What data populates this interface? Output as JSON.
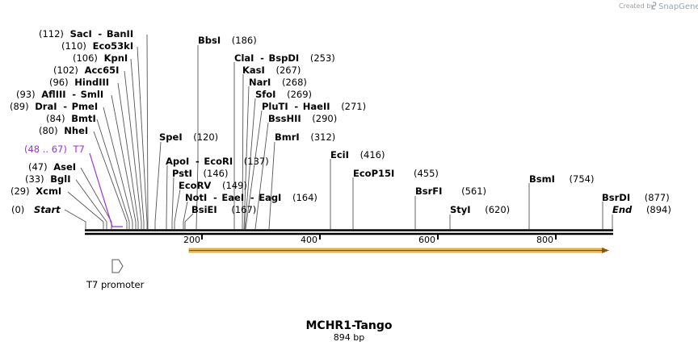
{
  "credit": {
    "created_by": "Created by",
    "brand": "SnapGene"
  },
  "map": {
    "title": "MCHR1-Tango",
    "length_label": "894 bp",
    "axis_ticks": [
      "200",
      "400",
      "600",
      "800"
    ],
    "colors": {
      "backbone": "#000000",
      "feature_orange": "#f4b942",
      "feature_purple": "#9b30d9",
      "label_line": "#555555"
    }
  },
  "features": {
    "t7_promoter": {
      "label": "T7 promoter",
      "icon": "arrow-outline-icon"
    },
    "t7_site": {
      "range": "(48 .. 67)",
      "name": "T7"
    }
  },
  "sites": {
    "start": {
      "pos": "(0)",
      "name": "Start"
    },
    "xcmi": {
      "pos": "(29)",
      "name": "XcmI"
    },
    "bgli": {
      "pos": "(33)",
      "name": "BglI"
    },
    "asei": {
      "pos": "(47)",
      "name": "AseI"
    },
    "nhei": {
      "pos": "(80)",
      "name": "NheI"
    },
    "bmti": {
      "pos": "(84)",
      "name": "BmtI"
    },
    "drai": {
      "pos": "(89)",
      "name": "DraI",
      "partner": "PmeI"
    },
    "aflii": {
      "pos": "(93)",
      "name": "AflIII",
      "partner": "SmlI"
    },
    "hindiii": {
      "pos": "(96)",
      "name": "HindIII"
    },
    "acc65i": {
      "pos": "(102)",
      "name": "Acc65I"
    },
    "kpni": {
      "pos": "(106)",
      "name": "KpnI"
    },
    "eco53ki": {
      "pos": "(110)",
      "name": "Eco53kI"
    },
    "saci": {
      "pos": "(112)",
      "name": "SacI",
      "partner": "BanII"
    },
    "spei": {
      "name": "SpeI",
      "pos": "(120)"
    },
    "apoi": {
      "name": "ApoI",
      "partner": "EcoRI",
      "pos": "(137)"
    },
    "psti": {
      "name": "PstI",
      "pos": "(146)"
    },
    "ecorv": {
      "name": "EcoRV",
      "pos": "(149)"
    },
    "noti": {
      "name": "NotI",
      "partner": "EaeI",
      "partner2": "EagI",
      "pos": "(164)"
    },
    "bsiei": {
      "name": "BsiEI",
      "pos": "(167)"
    },
    "bbsi": {
      "name": "BbsI",
      "pos": "(186)"
    },
    "clai": {
      "name": "ClaI",
      "partner": "BspDI",
      "pos": "(253)"
    },
    "kasi": {
      "name": "KasI",
      "pos": "(267)"
    },
    "nari": {
      "name": "NarI",
      "pos": "(268)"
    },
    "sfoi": {
      "name": "SfoI",
      "pos": "(269)"
    },
    "pluti": {
      "name": "PluTI",
      "partner": "HaeII",
      "pos": "(271)"
    },
    "bsshii": {
      "name": "BssHII",
      "pos": "(290)"
    },
    "bmri": {
      "name": "BmrI",
      "pos": "(312)"
    },
    "ecii": {
      "name": "EciI",
      "pos": "(416)"
    },
    "ecop15i": {
      "name": "EcoP15I",
      "pos": "(455)"
    },
    "bsrfi": {
      "name": "BsrFI",
      "pos": "(561)"
    },
    "styi": {
      "name": "StyI",
      "pos": "(620)"
    },
    "bsmi": {
      "name": "BsmI",
      "pos": "(754)"
    },
    "bsrdi": {
      "name": "BsrDI",
      "pos": "(877)"
    },
    "end": {
      "name": "End",
      "pos": "(894)"
    }
  }
}
